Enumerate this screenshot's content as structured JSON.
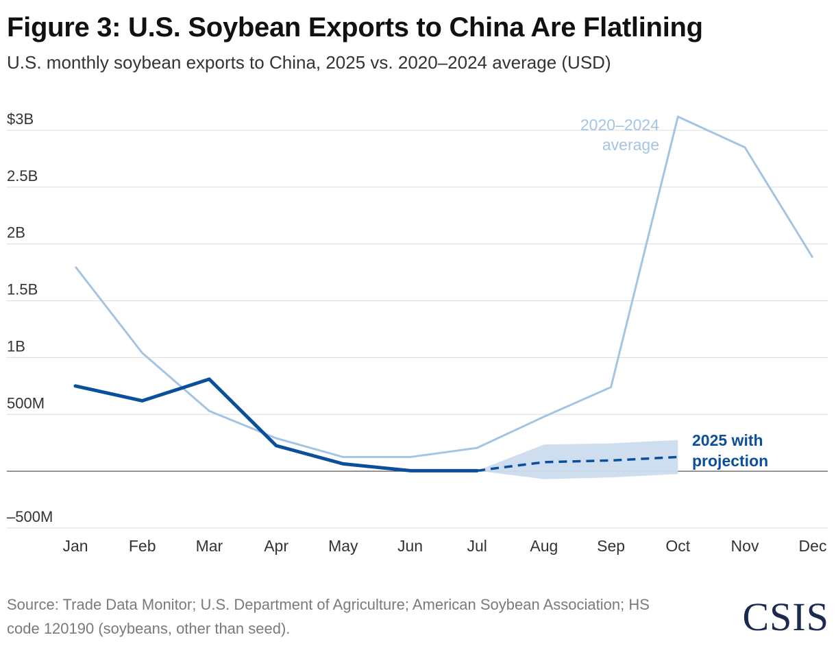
{
  "title": "Figure 3: U.S. Soybean Exports to China Are Flatlining",
  "subtitle": "U.S. monthly soybean exports to China, 2025 vs. 2020–2024 average (USD)",
  "source": "Source: Trade Data Monitor; U.S. Department of Agriculture; American Soybean Association; HS code 120190 (soybeans, other than seed).",
  "logo": "CSIS",
  "colors": {
    "average": "#a4c4e4",
    "actual": "#0a4f9c",
    "band": "#ccdcee",
    "grid": "#dcdcdc",
    "zero": "#555555"
  },
  "chart_data": {
    "type": "line",
    "categories": [
      "Jan",
      "Feb",
      "Mar",
      "Apr",
      "May",
      "Jun",
      "Jul",
      "Aug",
      "Sep",
      "Oct",
      "Nov",
      "Dec"
    ],
    "ylim": [
      -500000000,
      3000000000
    ],
    "yticks": [
      {
        "value": 3000000000,
        "label": "$3B"
      },
      {
        "value": 2500000000,
        "label": "2.5B"
      },
      {
        "value": 2000000000,
        "label": "2B"
      },
      {
        "value": 1500000000,
        "label": "1.5B"
      },
      {
        "value": 1000000000,
        "label": "1B"
      },
      {
        "value": 500000000,
        "label": "500M"
      },
      {
        "value": 0,
        "label": ""
      },
      {
        "value": -500000000,
        "label": "–500M"
      }
    ],
    "series": [
      {
        "name": "2020–2024 average",
        "values": [
          1800000000,
          1040000000,
          530000000,
          290000000,
          125000000,
          125000000,
          205000000,
          480000000,
          740000000,
          3120000000,
          2850000000,
          1880000000
        ]
      },
      {
        "name": "2025 with projection",
        "values": [
          750000000,
          620000000,
          810000000,
          225000000,
          65000000,
          5000000,
          5000000,
          null,
          null,
          null,
          null,
          null
        ],
        "projection": {
          "x": [
            "Jul",
            "Aug",
            "Sep",
            "Oct"
          ],
          "values": [
            5000000,
            80000000,
            95000000,
            125000000
          ],
          "upper": [
            5000000,
            235000000,
            245000000,
            275000000
          ],
          "lower": [
            5000000,
            -70000000,
            -55000000,
            -25000000
          ]
        }
      }
    ],
    "annotations": [
      {
        "series": 0,
        "lines": [
          "2020–2024",
          "average"
        ]
      },
      {
        "series": 1,
        "lines": [
          "2025 with",
          "projection"
        ]
      }
    ],
    "grid": true,
    "legend": "none"
  }
}
